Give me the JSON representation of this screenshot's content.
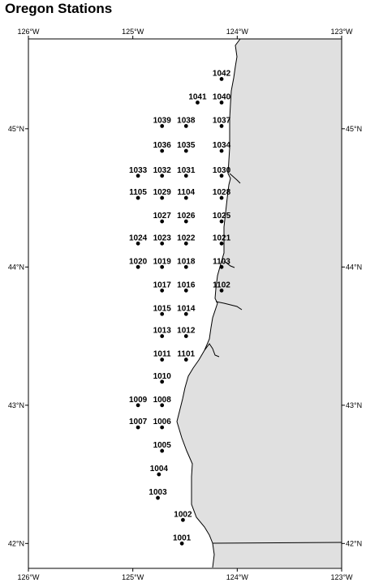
{
  "title": "Oregon Stations",
  "colors": {
    "land": "#e0e0e0",
    "sea": "#ffffff",
    "coast": "#000000",
    "station": "#000000"
  },
  "axes": {
    "lon_ticks": [
      {
        "value": -126,
        "label": "126°W"
      },
      {
        "value": -125,
        "label": "125°W"
      },
      {
        "value": -124,
        "label": "124°W"
      },
      {
        "value": -123,
        "label": "123°W"
      }
    ],
    "lat_ticks": [
      {
        "value": 45,
        "label": "45°N"
      },
      {
        "value": 44,
        "label": "44°N"
      },
      {
        "value": 43,
        "label": "43°N"
      },
      {
        "value": 42,
        "label": "42°N"
      }
    ],
    "lon_range": [
      -126,
      -123
    ],
    "lat_range": [
      41.82,
      45.65
    ]
  },
  "stations": [
    {
      "id": "1042",
      "lon": -124.15,
      "lat": 45.36
    },
    {
      "id": "1041",
      "lon": -124.38,
      "lat": 45.19
    },
    {
      "id": "1040",
      "lon": -124.15,
      "lat": 45.19
    },
    {
      "id": "1039",
      "lon": -124.72,
      "lat": 45.02
    },
    {
      "id": "1038",
      "lon": -124.49,
      "lat": 45.02
    },
    {
      "id": "1037",
      "lon": -124.15,
      "lat": 45.02
    },
    {
      "id": "1036",
      "lon": -124.72,
      "lat": 44.84
    },
    {
      "id": "1035",
      "lon": -124.49,
      "lat": 44.84
    },
    {
      "id": "1034",
      "lon": -124.15,
      "lat": 44.84
    },
    {
      "id": "1033",
      "lon": -124.95,
      "lat": 44.66
    },
    {
      "id": "1032",
      "lon": -124.72,
      "lat": 44.66
    },
    {
      "id": "1031",
      "lon": -124.49,
      "lat": 44.66
    },
    {
      "id": "1030",
      "lon": -124.15,
      "lat": 44.66
    },
    {
      "id": "1105",
      "lon": -124.95,
      "lat": 44.5
    },
    {
      "id": "1029",
      "lon": -124.72,
      "lat": 44.5
    },
    {
      "id": "1104",
      "lon": -124.49,
      "lat": 44.5
    },
    {
      "id": "1028",
      "lon": -124.15,
      "lat": 44.5
    },
    {
      "id": "1027",
      "lon": -124.72,
      "lat": 44.33
    },
    {
      "id": "1026",
      "lon": -124.49,
      "lat": 44.33
    },
    {
      "id": "1025",
      "lon": -124.15,
      "lat": 44.33
    },
    {
      "id": "1024",
      "lon": -124.95,
      "lat": 44.17
    },
    {
      "id": "1023",
      "lon": -124.72,
      "lat": 44.17
    },
    {
      "id": "1022",
      "lon": -124.49,
      "lat": 44.17
    },
    {
      "id": "1021",
      "lon": -124.15,
      "lat": 44.17
    },
    {
      "id": "1020",
      "lon": -124.95,
      "lat": 44.0
    },
    {
      "id": "1019",
      "lon": -124.72,
      "lat": 44.0
    },
    {
      "id": "1018",
      "lon": -124.49,
      "lat": 44.0
    },
    {
      "id": "1103",
      "lon": -124.15,
      "lat": 44.0
    },
    {
      "id": "1017",
      "lon": -124.72,
      "lat": 43.83
    },
    {
      "id": "1016",
      "lon": -124.49,
      "lat": 43.83
    },
    {
      "id": "1102",
      "lon": -124.15,
      "lat": 43.83
    },
    {
      "id": "1015",
      "lon": -124.72,
      "lat": 43.66
    },
    {
      "id": "1014",
      "lon": -124.49,
      "lat": 43.66
    },
    {
      "id": "1013",
      "lon": -124.72,
      "lat": 43.5
    },
    {
      "id": "1012",
      "lon": -124.49,
      "lat": 43.5
    },
    {
      "id": "1011",
      "lon": -124.72,
      "lat": 43.33
    },
    {
      "id": "1101",
      "lon": -124.49,
      "lat": 43.33
    },
    {
      "id": "1010",
      "lon": -124.72,
      "lat": 43.17
    },
    {
      "id": "1009",
      "lon": -124.95,
      "lat": 43.0
    },
    {
      "id": "1008",
      "lon": -124.72,
      "lat": 43.0
    },
    {
      "id": "1007",
      "lon": -124.95,
      "lat": 42.84
    },
    {
      "id": "1006",
      "lon": -124.72,
      "lat": 42.84
    },
    {
      "id": "1005",
      "lon": -124.72,
      "lat": 42.67
    },
    {
      "id": "1004",
      "lon": -124.75,
      "lat": 42.5
    },
    {
      "id": "1003",
      "lon": -124.76,
      "lat": 42.33
    },
    {
      "id": "1002",
      "lon": -124.52,
      "lat": 42.17
    },
    {
      "id": "1001",
      "lon": -124.53,
      "lat": 42.0
    }
  ]
}
